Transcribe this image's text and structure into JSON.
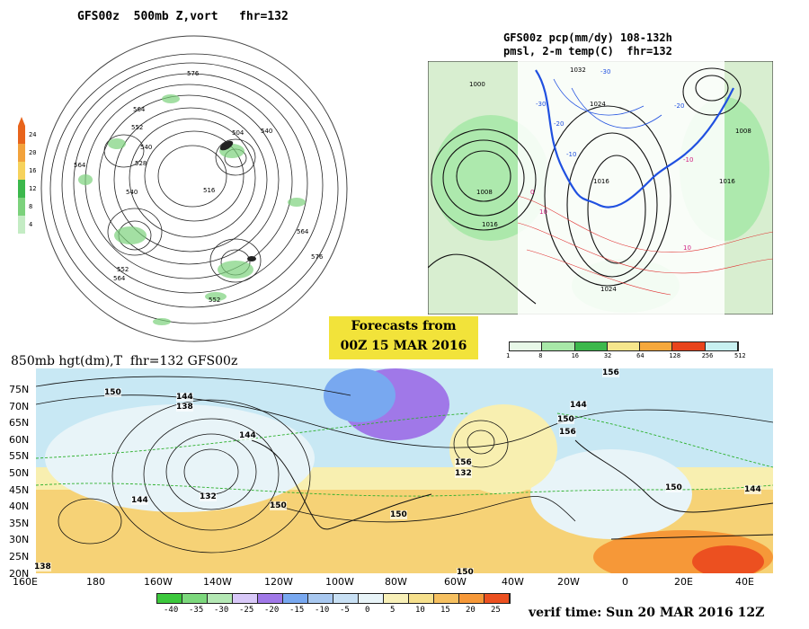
{
  "panels": {
    "polar": {
      "title": "GFS00z  500mb Z,vort   fhr=132",
      "colorbar_labels": [
        "24",
        "20",
        "16",
        "12",
        "8",
        "4"
      ],
      "colorbar_colors": [
        "#e8641c",
        "#f2a23c",
        "#f6d25c",
        "#3cb84c",
        "#7cd27c",
        "#c4ecc4"
      ],
      "contour_labels": [
        "576",
        "564",
        "552",
        "540",
        "528",
        "516",
        "504",
        "564",
        "552",
        "540",
        "576",
        "564",
        "552",
        "540",
        "564"
      ]
    },
    "namerica": {
      "title_line1": "GFS00z pcp(mm/dy) 108-132h",
      "title_line2": "pmsl, 2-m temp(C)  fhr=132",
      "isobar_labels": [
        "1000",
        "1016",
        "1008",
        "1024",
        "1016",
        "1008",
        "1016",
        "1024",
        "1032"
      ],
      "temp_labels": [
        "-30",
        "-20",
        "-10",
        "0",
        "10",
        "-10",
        "10",
        "-20",
        "-30"
      ],
      "colorbar_labels": [
        "1",
        "8",
        "16",
        "32",
        "64",
        "128",
        "256",
        "512"
      ],
      "colorbar_colors": [
        "#e8f8e8",
        "#a8e8a8",
        "#3cb84c",
        "#f6e68c",
        "#f6a83c",
        "#e8441c",
        "#c8f0f0"
      ]
    },
    "banner": {
      "line1": "Forecasts from",
      "line2": "00Z 15 MAR 2016"
    },
    "hemispheric": {
      "title": "850mb hgt(dm),T  fhr=132 GFS00z",
      "lat_labels": [
        "75N",
        "70N",
        "65N",
        "60N",
        "55N",
        "50N",
        "45N",
        "40N",
        "35N",
        "30N",
        "25N",
        "20N"
      ],
      "lon_labels": [
        "160E",
        "180",
        "160W",
        "140W",
        "120W",
        "100W",
        "80W",
        "60W",
        "40W",
        "20W",
        "0",
        "20E",
        "40E"
      ],
      "height_labels": [
        "150",
        "144",
        "138",
        "144",
        "132",
        "144",
        "150",
        "156",
        "132",
        "138",
        "150",
        "144",
        "156",
        "150",
        "144",
        "156",
        "150",
        "150"
      ],
      "colorbar_labels": [
        "-40",
        "-35",
        "-30",
        "-25",
        "-20",
        "-15",
        "-10",
        "-5",
        "0",
        "5",
        "10",
        "15",
        "20",
        "25"
      ],
      "colorbar_colors": [
        "#3cc83c",
        "#7cd87c",
        "#b4e8b4",
        "#d8c8f8",
        "#a078e8",
        "#78a8f0",
        "#a8c8f0",
        "#c8e0f4",
        "#e8f4f8",
        "#f8f0b8",
        "#f6e08c",
        "#f6c060",
        "#f69838",
        "#ec5020"
      ],
      "verif_time": "verif time: Sun 20 MAR 2016 12Z"
    }
  }
}
